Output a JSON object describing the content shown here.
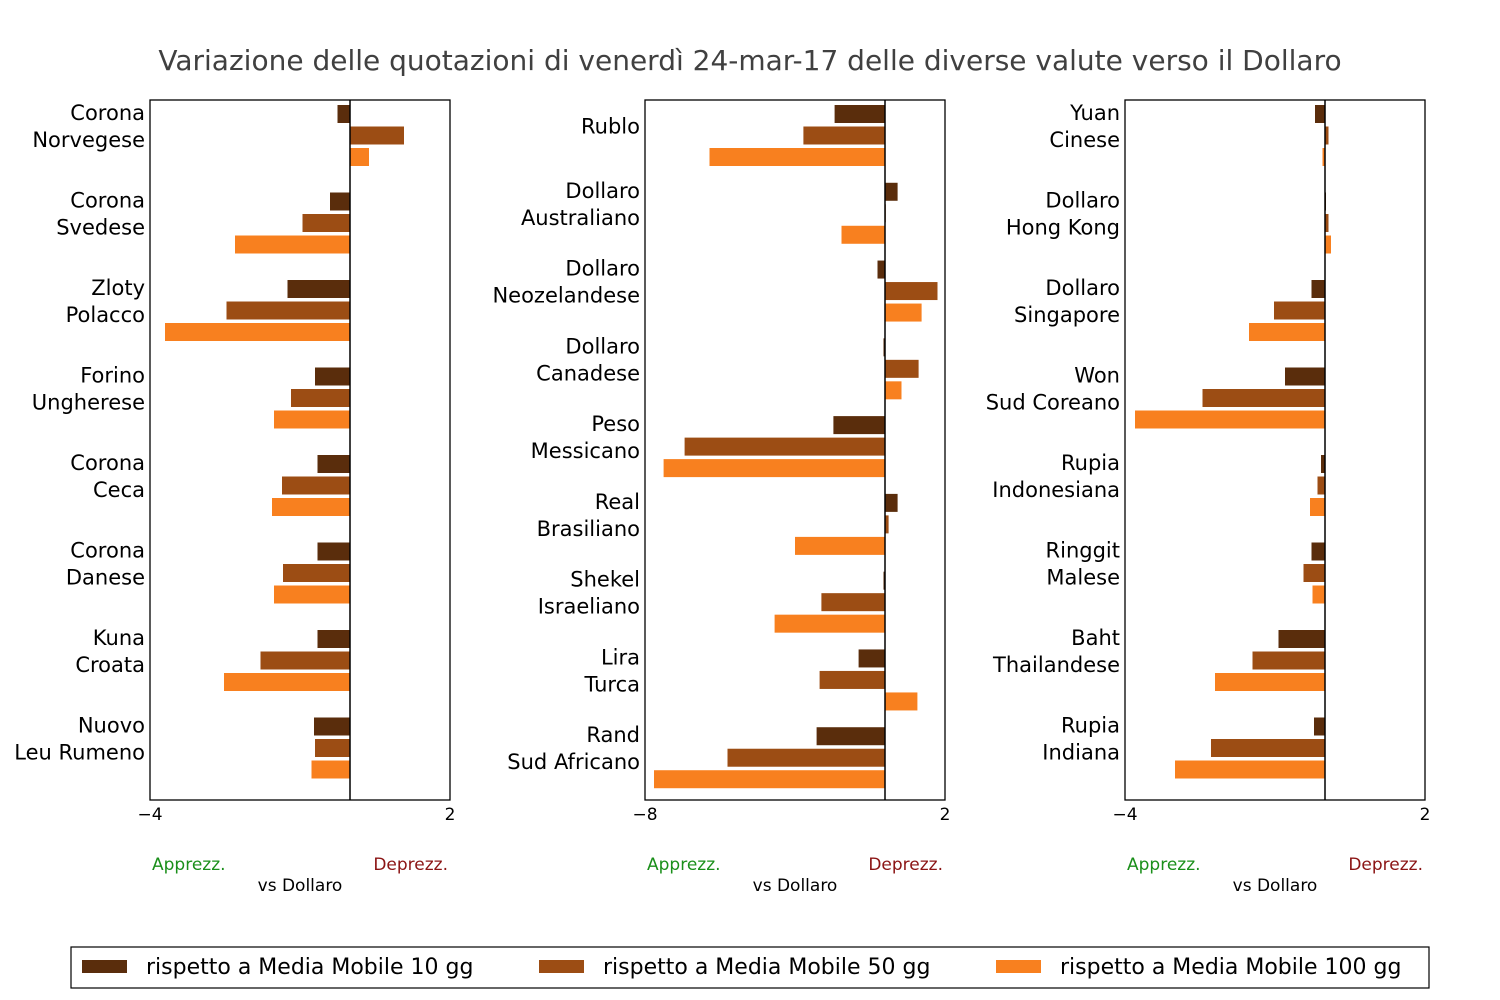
{
  "title": "Variazione delle quotazioni di venerdì 24-mar-17 delle diverse valute verso il Dollaro",
  "annotations": {
    "left": "Apprezz.",
    "right": "Deprezz.",
    "axis": "vs Dollaro"
  },
  "colors": {
    "apprezz": "#1a8f1a",
    "deprezz": "#8b1414",
    "frame": "#000000",
    "title": "#404040"
  },
  "legend": [
    {
      "label": "rispetto a Media Mobile 10 gg",
      "color": "#5a2d0c"
    },
    {
      "label": "rispetto a Media Mobile 50 gg",
      "color": "#9c4d14"
    },
    {
      "label": "rispetto a Media Mobile 100 gg",
      "color": "#f8801f"
    }
  ],
  "chart_data": [
    {
      "type": "bar",
      "orientation": "horizontal",
      "xlim": [
        -4,
        2
      ],
      "xticks": [
        "−4",
        "2"
      ],
      "xtick_values": [
        -4,
        2
      ],
      "xlabel": "vs Dollaro",
      "categories": [
        [
          "Corona",
          "Norvegese"
        ],
        [
          "Corona",
          "Svedese"
        ],
        [
          "Zloty",
          "Polacco"
        ],
        [
          "Forino",
          "Ungherese"
        ],
        [
          "Corona",
          "Ceca"
        ],
        [
          "Corona",
          "Danese"
        ],
        [
          "Kuna",
          "Croata"
        ],
        [
          "Nuovo",
          "Leu Rumeno"
        ]
      ],
      "series": [
        {
          "name": "rispetto a Media Mobile 10 gg",
          "values": [
            -0.25,
            -0.4,
            -1.25,
            -0.7,
            -0.65,
            -0.65,
            -0.65,
            -0.72
          ]
        },
        {
          "name": "rispetto a Media Mobile 50 gg",
          "values": [
            1.08,
            -0.95,
            -2.47,
            -1.18,
            -1.36,
            -1.34,
            -1.79,
            -0.7
          ]
        },
        {
          "name": "rispetto a Media Mobile 100 gg",
          "values": [
            0.38,
            -2.3,
            -3.7,
            -1.52,
            -1.56,
            -1.52,
            -2.52,
            -0.77
          ]
        }
      ]
    },
    {
      "type": "bar",
      "orientation": "horizontal",
      "xlim": [
        -8,
        2
      ],
      "xticks": [
        "−8",
        "2"
      ],
      "xtick_values": [
        -8,
        2
      ],
      "xlabel": "vs Dollaro",
      "categories": [
        [
          "Rublo"
        ],
        [
          "Dollaro",
          "Australiano"
        ],
        [
          "Dollaro",
          "Neozelandese"
        ],
        [
          "Dollaro",
          "Canadese"
        ],
        [
          "Peso",
          "Messicano"
        ],
        [
          "Real",
          "Brasiliano"
        ],
        [
          "Shekel",
          "Israeliano"
        ],
        [
          "Lira",
          "Turca"
        ],
        [
          "Rand",
          "Sud Africano"
        ]
      ],
      "series": [
        {
          "name": "rispetto a Media Mobile 10 gg",
          "values": [
            -1.68,
            0.42,
            -0.25,
            -0.05,
            -1.72,
            0.42,
            -0.05,
            -0.88,
            -2.28
          ]
        },
        {
          "name": "rispetto a Media Mobile 50 gg",
          "values": [
            -2.72,
            0.0,
            1.75,
            1.12,
            -6.68,
            0.12,
            -2.12,
            -2.18,
            -5.25
          ]
        },
        {
          "name": "rispetto a Media Mobile 100 gg",
          "values": [
            -5.85,
            -1.45,
            1.22,
            0.55,
            -7.38,
            -3.0,
            -3.68,
            1.08,
            -7.7
          ]
        }
      ]
    },
    {
      "type": "bar",
      "orientation": "horizontal",
      "xlim": [
        -4,
        2
      ],
      "xticks": [
        "−4",
        "2"
      ],
      "xtick_values": [
        -4,
        2
      ],
      "xlabel": "vs Dollaro",
      "categories": [
        [
          "Yuan",
          "Cinese"
        ],
        [
          "Dollaro",
          "Hong Kong"
        ],
        [
          "Dollaro",
          "Singapore"
        ],
        [
          "Won",
          "Sud Coreano"
        ],
        [
          "Rupia",
          "Indonesiana"
        ],
        [
          "Ringgit",
          "Malese"
        ],
        [
          "Baht",
          "Thailandese"
        ],
        [
          "Rupia",
          "Indiana"
        ]
      ],
      "series": [
        {
          "name": "rispetto a Media Mobile 10 gg",
          "values": [
            -0.2,
            0.02,
            -0.27,
            -0.8,
            -0.08,
            -0.27,
            -0.93,
            -0.22
          ]
        },
        {
          "name": "rispetto a Media Mobile 50 gg",
          "values": [
            0.07,
            0.07,
            -1.02,
            -2.45,
            -0.15,
            -0.43,
            -1.45,
            -2.28
          ]
        },
        {
          "name": "rispetto a Media Mobile 100 gg",
          "values": [
            -0.05,
            0.12,
            -1.52,
            -3.8,
            -0.3,
            -0.25,
            -2.2,
            -3.0
          ]
        }
      ]
    }
  ]
}
